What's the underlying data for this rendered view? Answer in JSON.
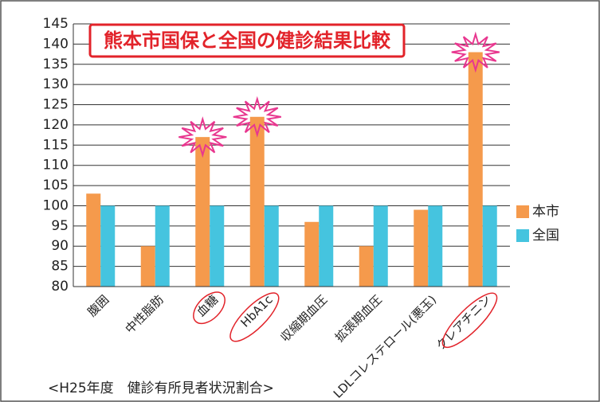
{
  "chart_data": {
    "type": "bar",
    "title": "熊本市国保と全国の健診結果比較",
    "footnote": "<H25年度　健診有所見者状況割合>",
    "categories": [
      "腹囲",
      "中性脂肪",
      "血糖",
      "HbA1c",
      "収縮期血圧",
      "拡張期血圧",
      "LDLコレステロール(悪玉)",
      "クレアチニン"
    ],
    "series": [
      {
        "name": "本市",
        "color": "#f59a4c",
        "values": [
          103,
          90,
          117,
          122,
          96,
          90,
          99,
          138
        ]
      },
      {
        "name": "全国",
        "color": "#45c4df",
        "values": [
          100,
          100,
          100,
          100,
          100,
          100,
          100,
          100
        ]
      }
    ],
    "ylim": [
      80,
      145
    ],
    "yticks": [
      80,
      85,
      90,
      95,
      100,
      105,
      110,
      115,
      120,
      125,
      130,
      135,
      140,
      145
    ],
    "grid": true,
    "legend": "right"
  }
}
